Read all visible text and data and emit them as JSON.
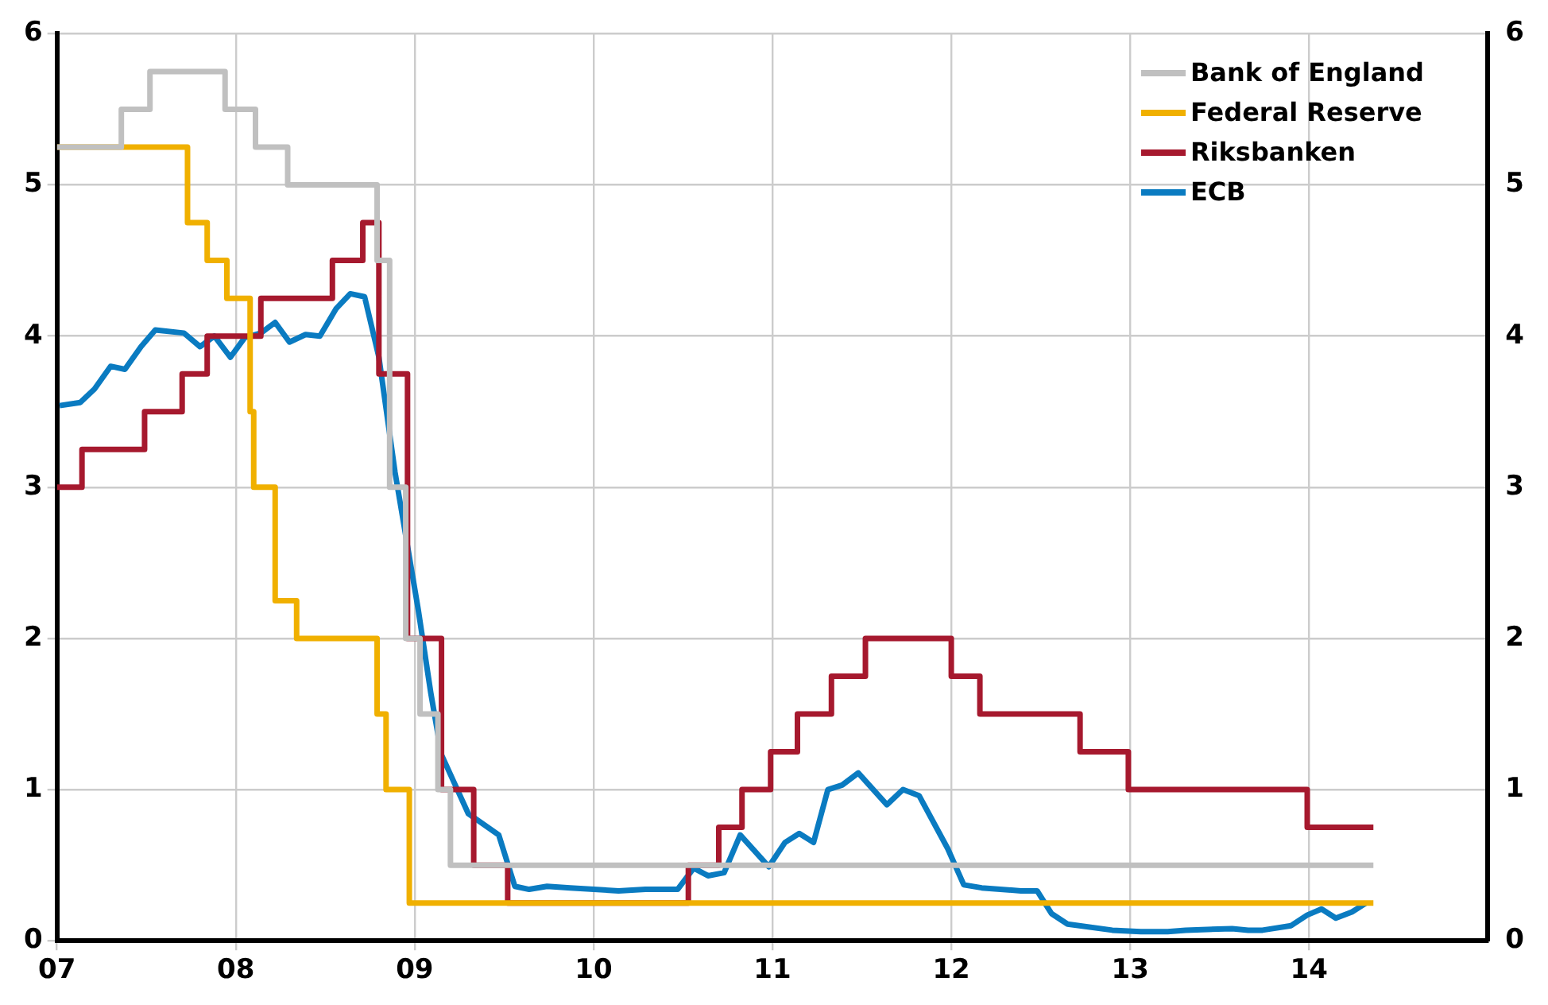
{
  "chart_data": {
    "type": "line",
    "xlim": [
      2007,
      2015
    ],
    "xticks": [
      {
        "value": 2007,
        "label": "07"
      },
      {
        "value": 2008,
        "label": "08"
      },
      {
        "value": 2009,
        "label": "09"
      },
      {
        "value": 2010,
        "label": "10"
      },
      {
        "value": 2011,
        "label": "11"
      },
      {
        "value": 2012,
        "label": "12"
      },
      {
        "value": 2013,
        "label": "13"
      },
      {
        "value": 2014,
        "label": "14"
      }
    ],
    "ylim": [
      0,
      6
    ],
    "yticks": [
      0,
      1,
      2,
      3,
      4,
      5,
      6
    ],
    "y2lim": [
      0,
      6
    ],
    "y2ticks": [
      0,
      1,
      2,
      3,
      4,
      5,
      6
    ],
    "grid": true,
    "legend": "top right",
    "marker": "none",
    "line_style": "solid",
    "series": [
      {
        "name": "Bank of England",
        "type": "step",
        "color": "#c0c0c0",
        "x": [
          2007,
          2007.36,
          2007.52,
          2007.94,
          2008.11,
          2008.29,
          2008.79,
          2008.86,
          2008.95,
          2009.03,
          2009.13,
          2009.2,
          2014.36
        ],
        "values": [
          5.25,
          5.5,
          5.75,
          5.5,
          5.25,
          5.0,
          4.5,
          3.0,
          2.0,
          1.5,
          1.0,
          0.5,
          0.5
        ]
      },
      {
        "name": "Federal Reserve",
        "type": "step",
        "color": "#f0b000",
        "x": [
          2007,
          2007.73,
          2007.84,
          2007.95,
          2008.08,
          2008.1,
          2008.22,
          2008.34,
          2008.79,
          2008.84,
          2008.97,
          2014.36
        ],
        "values": [
          5.25,
          4.75,
          4.5,
          4.25,
          3.5,
          3.0,
          2.25,
          2.0,
          1.5,
          1.0,
          0.25,
          0.25
        ]
      },
      {
        "name": "Riksbanken",
        "type": "step",
        "color": "#a6192e",
        "x": [
          2007,
          2007.14,
          2007.49,
          2007.7,
          2007.84,
          2008.14,
          2008.54,
          2008.71,
          2008.8,
          2008.96,
          2009.15,
          2009.33,
          2009.52,
          2010.53,
          2010.7,
          2010.83,
          2010.99,
          2011.14,
          2011.33,
          2011.52,
          2012.0,
          2012.16,
          2012.72,
          2012.99,
          2013.99,
          2014.36
        ],
        "values": [
          3.0,
          3.25,
          3.5,
          3.75,
          4.0,
          4.25,
          4.5,
          4.75,
          3.75,
          2.0,
          1.0,
          0.5,
          0.25,
          0.5,
          0.75,
          1.0,
          1.25,
          1.5,
          1.75,
          2.0,
          1.75,
          1.5,
          1.25,
          1.0,
          0.75,
          0.75
        ]
      },
      {
        "name": "ECB",
        "color": "#0a7bc1",
        "x": [
          2007.015,
          2007.13,
          2007.21,
          2007.3,
          2007.38,
          2007.47,
          2007.55,
          2007.71,
          2007.8,
          2007.88,
          2007.97,
          2008.05,
          2008.14,
          2008.22,
          2008.3,
          2008.39,
          2008.47,
          2008.56,
          2008.64,
          2008.72,
          2008.8,
          2008.89,
          2008.96,
          2009.02,
          2009.09,
          2009.15,
          2009.3,
          2009.47,
          2009.56,
          2009.64,
          2009.74,
          2009.87,
          2010.14,
          2010.29,
          2010.47,
          2010.56,
          2010.64,
          2010.73,
          2010.82,
          2010.98,
          2011.07,
          2011.15,
          2011.23,
          2011.31,
          2011.39,
          2011.48,
          2011.64,
          2011.73,
          2011.82,
          2011.98,
          2012.07,
          2012.17,
          2012.39,
          2012.48,
          2012.56,
          2012.65,
          2012.9,
          2013.06,
          2013.21,
          2013.31,
          2013.57,
          2013.66,
          2013.74,
          2013.9,
          2013.99,
          2014.07,
          2014.15,
          2014.24,
          2014.32
        ],
        "values": [
          3.54,
          3.56,
          3.65,
          3.8,
          3.78,
          3.93,
          4.04,
          4.02,
          3.93,
          4.0,
          3.86,
          3.99,
          4.02,
          4.09,
          3.96,
          4.01,
          4.0,
          4.18,
          4.28,
          4.26,
          3.86,
          3.1,
          2.61,
          2.19,
          1.64,
          1.23,
          0.84,
          0.7,
          0.36,
          0.34,
          0.36,
          0.35,
          0.33,
          0.34,
          0.34,
          0.48,
          0.43,
          0.45,
          0.7,
          0.49,
          0.65,
          0.71,
          0.65,
          1.0,
          1.03,
          1.11,
          0.9,
          1.0,
          0.96,
          0.61,
          0.37,
          0.35,
          0.33,
          0.33,
          0.18,
          0.11,
          0.07,
          0.06,
          0.06,
          0.07,
          0.08,
          0.07,
          0.07,
          0.1,
          0.17,
          0.21,
          0.15,
          0.19,
          0.25
        ]
      }
    ]
  }
}
